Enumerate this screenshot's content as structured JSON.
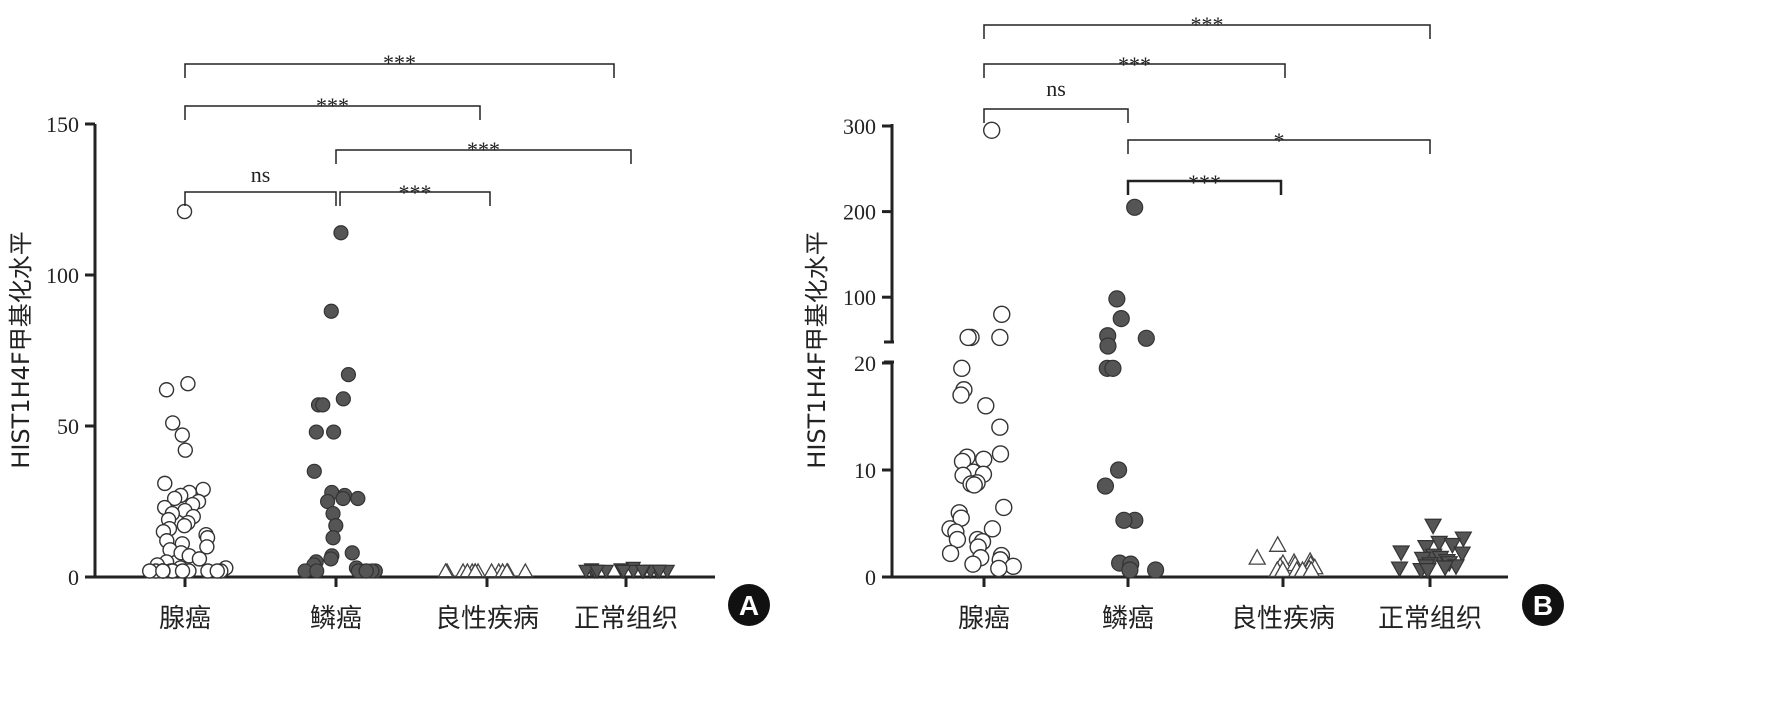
{
  "chart_data": [
    {
      "panel": "A",
      "type": "scatter",
      "ylabel": "HIST1H4F甲基化水平",
      "categories": [
        "腺癌",
        "鳞癌",
        "良性疾病",
        "正常组织"
      ],
      "yticks": [
        "0",
        "50",
        "100",
        "150"
      ],
      "ylim": [
        0,
        150
      ],
      "series": [
        {
          "category": "腺癌",
          "marker": "open-circle",
          "values": [
            121,
            64,
            62,
            51,
            47,
            42,
            31,
            29,
            28,
            27,
            26,
            25,
            24,
            23,
            22,
            21,
            20,
            19,
            18,
            17,
            16,
            15,
            14,
            13,
            12,
            11,
            10,
            9,
            8,
            7,
            6,
            5,
            4,
            3,
            3,
            2,
            2,
            2,
            1,
            1,
            1,
            1,
            1,
            1,
            1,
            1,
            0.5,
            0.5
          ]
        },
        {
          "category": "鳞癌",
          "marker": "filled-circle",
          "values": [
            114,
            88,
            67,
            59,
            57,
            57,
            48,
            48,
            35,
            28,
            27,
            26,
            26,
            25,
            21,
            17,
            13,
            8,
            7,
            6,
            5,
            4,
            3,
            2,
            2,
            1,
            1,
            1,
            1,
            0.5
          ]
        },
        {
          "category": "良性疾病",
          "marker": "open-triangle",
          "values": [
            2,
            1.5,
            1,
            1,
            1,
            0.8,
            0.6,
            0.5,
            0.5,
            0.4,
            0.3,
            0.3,
            0.2,
            0.2
          ]
        },
        {
          "category": "正常组织",
          "marker": "filled-triangle-down",
          "values": [
            3,
            2.5,
            2.5,
            2,
            2,
            2,
            2,
            2,
            1.5,
            1.5,
            1.5,
            1.5,
            1,
            1,
            1,
            1
          ]
        }
      ],
      "comparisons": [
        {
          "from": "腺癌",
          "to": "鳞癌",
          "label": "ns"
        },
        {
          "from": "鳞癌",
          "to": "良性疾病",
          "label": "***"
        },
        {
          "from": "鳞癌",
          "to": "正常组织",
          "label": "***"
        },
        {
          "from": "腺癌",
          "to": "良性疾病",
          "label": "***"
        },
        {
          "from": "腺癌",
          "to": "正常组织",
          "label": "***"
        }
      ]
    },
    {
      "panel": "B",
      "type": "scatter",
      "ylabel": "HIST1H4F甲基化水平",
      "categories": [
        "腺癌",
        "鳞癌",
        "良性疾病",
        "正常组织"
      ],
      "yticks": [
        "0",
        "10",
        "20",
        "100",
        "200",
        "300"
      ],
      "axis_break": [
        20,
        50
      ],
      "ylim": [
        0,
        300
      ],
      "series": [
        {
          "category": "腺癌",
          "marker": "open-circle",
          "values": [
            295,
            80,
            53,
            53,
            53,
            19.5,
            17.5,
            17,
            16,
            14,
            11.5,
            11.2,
            11,
            10.8,
            9.8,
            9.6,
            9.5,
            8.8,
            8.7,
            8.6,
            6.5,
            6,
            5.5,
            4.5,
            4.5,
            4.2,
            3.5,
            3.5,
            3.3,
            2.8,
            2.2,
            2,
            1.8,
            1.6,
            1.2,
            1,
            0.8
          ]
        },
        {
          "category": "鳞癌",
          "marker": "filled-circle",
          "values": [
            205,
            98,
            75,
            55,
            52,
            43,
            19.5,
            19.5,
            10,
            8.5,
            5.3,
            5.3,
            1.3,
            1.2,
            0.6,
            0.3
          ]
        },
        {
          "category": "良性疾病",
          "marker": "open-triangle",
          "values": [
            3,
            1.8,
            1.5,
            1.4,
            1.3,
            1.2,
            1.2,
            1,
            0.9,
            0.8,
            0.6,
            0.5,
            0.4,
            0.3,
            0.2
          ]
        },
        {
          "category": "正常组织",
          "marker": "filled-triangle-down",
          "values": [
            4.8,
            3.6,
            3.2,
            3,
            2.8,
            2.3,
            2.2,
            2,
            1.8,
            1.7,
            1.5,
            1.3,
            1.2,
            1,
            1,
            0.9,
            0.8,
            0.6,
            0.5
          ]
        }
      ],
      "comparisons": [
        {
          "from": "腺癌",
          "to": "鳞癌",
          "label": "ns"
        },
        {
          "from": "鳞癌",
          "to": "良性疾病",
          "label": "***"
        },
        {
          "from": "鳞癌",
          "to": "正常组织",
          "label": "*"
        },
        {
          "from": "腺癌",
          "to": "良性疾病",
          "label": "***"
        },
        {
          "from": "腺癌",
          "to": "正常组织",
          "label": "***"
        }
      ]
    }
  ]
}
